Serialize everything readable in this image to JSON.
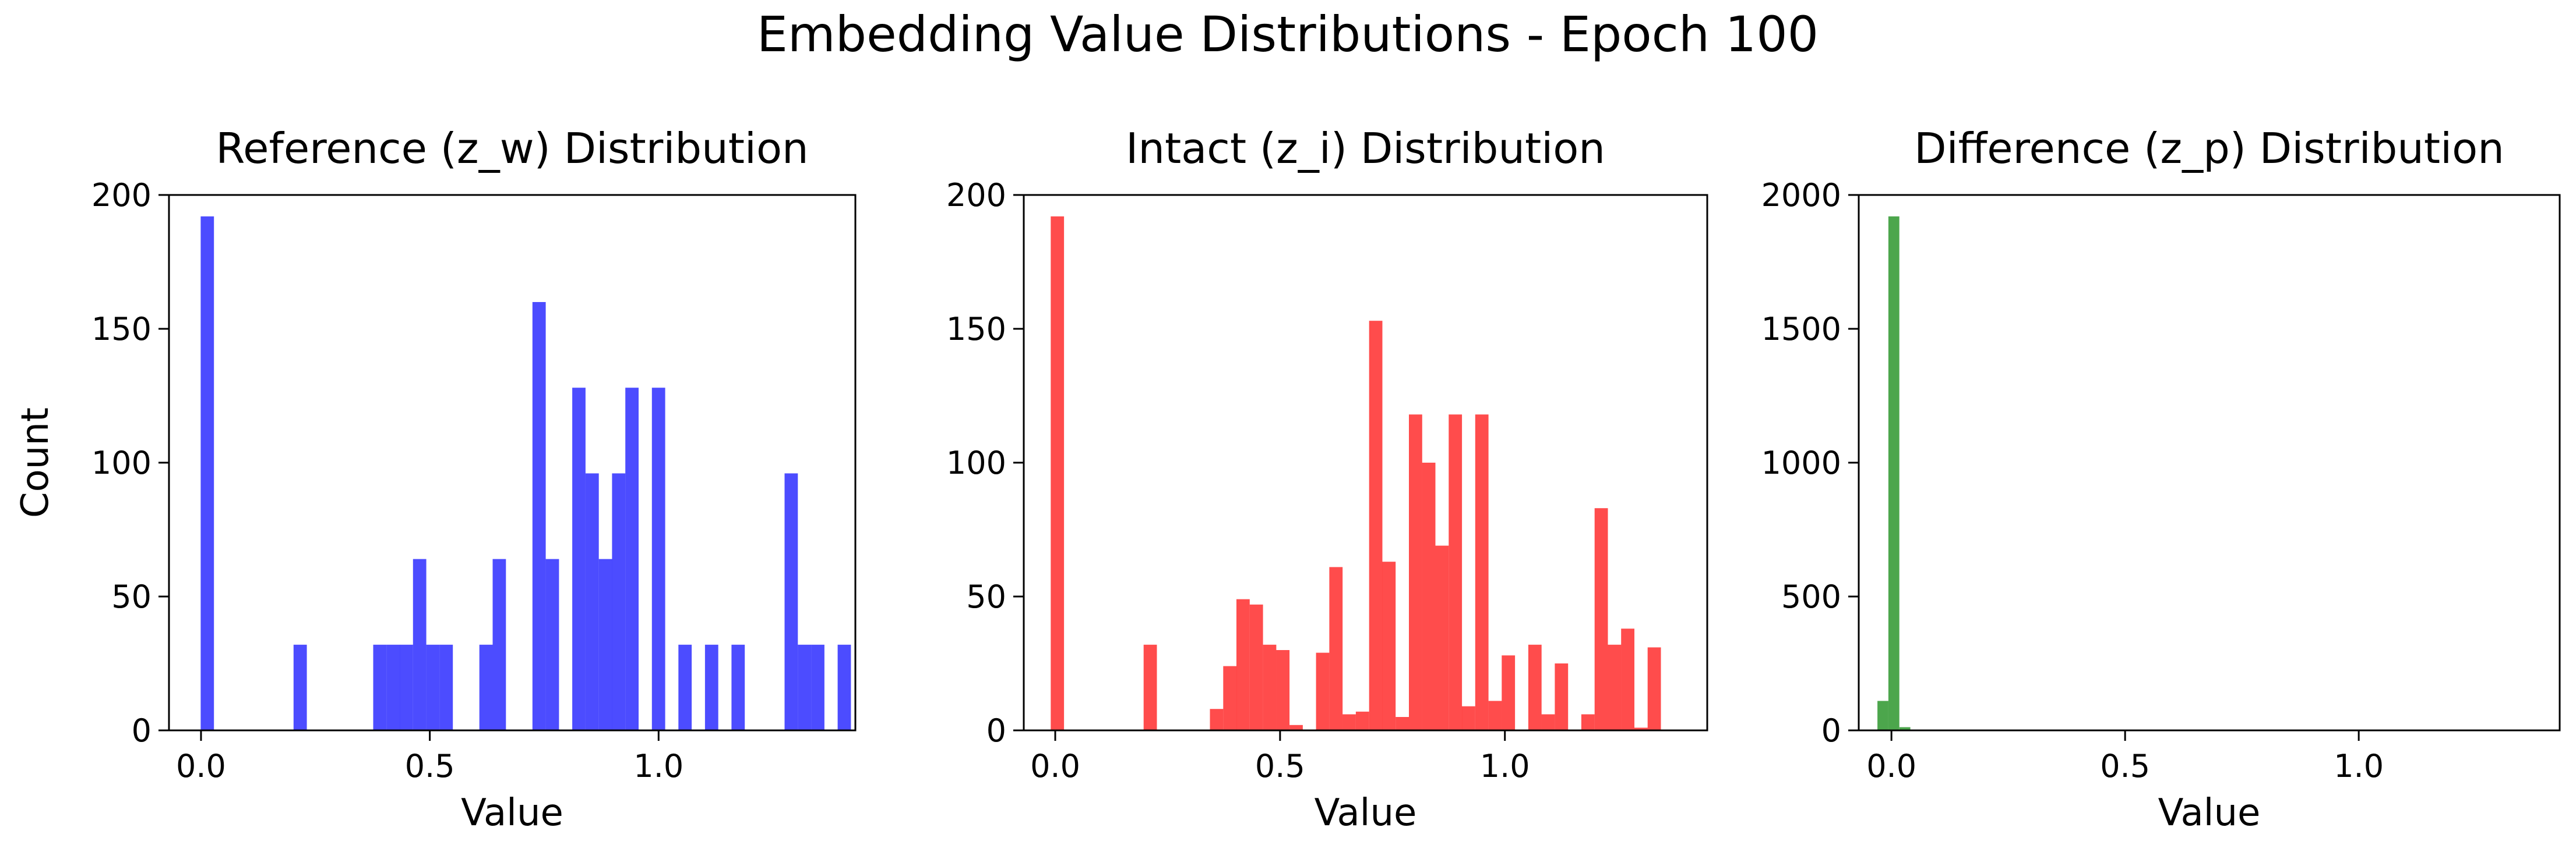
{
  "figure": {
    "suptitle": "Embedding Value Distributions - Epoch 100"
  },
  "chart_data": [
    {
      "type": "bar",
      "title": "Reference (z_w) Distribution",
      "xlabel": "Value",
      "ylabel": "Count",
      "color": "#0000ff",
      "opacity": 0.7,
      "xlim": [
        -0.07,
        1.43
      ],
      "ylim": [
        0,
        200
      ],
      "xticks": [
        0.0,
        0.5,
        1.0
      ],
      "xtick_labels": [
        "0.0",
        "0.5",
        "1.0"
      ],
      "yticks": [
        0,
        50,
        100,
        150,
        200
      ],
      "ytick_labels": [
        "0",
        "50",
        "100",
        "150",
        "200"
      ],
      "bin_start": -0.0007,
      "bin_width": 0.029,
      "values": [
        192,
        0,
        0,
        0,
        0,
        0,
        0,
        32,
        0,
        0,
        0,
        0,
        0,
        32,
        32,
        32,
        64,
        32,
        32,
        0,
        0,
        32,
        64,
        0,
        0,
        160,
        64,
        0,
        128,
        96,
        64,
        96,
        128,
        0,
        128,
        0,
        32,
        0,
        32,
        0,
        32,
        0,
        0,
        0,
        96,
        32,
        32,
        0,
        32
      ]
    },
    {
      "type": "bar",
      "title": "Intact (z_i) Distribution",
      "xlabel": "Value",
      "ylabel": "",
      "color": "#ff0000",
      "opacity": 0.7,
      "xlim": [
        -0.07,
        1.45
      ],
      "ylim": [
        0,
        200
      ],
      "xticks": [
        0.0,
        0.5,
        1.0
      ],
      "xtick_labels": [
        "0.0",
        "0.5",
        "1.0"
      ],
      "yticks": [
        0,
        50,
        100,
        150,
        200
      ],
      "ytick_labels": [
        "0",
        "50",
        "100",
        "150",
        "200"
      ],
      "bin_start": -0.01,
      "bin_width": 0.0295,
      "values": [
        192,
        0,
        0,
        0,
        0,
        0,
        0,
        32,
        0,
        0,
        0,
        0,
        8,
        24,
        49,
        47,
        32,
        30,
        2,
        0,
        29,
        61,
        6,
        7,
        153,
        63,
        5,
        118,
        100,
        69,
        118,
        9,
        118,
        11,
        28,
        0,
        32,
        6,
        25,
        0,
        6,
        83,
        32,
        38,
        1,
        31
      ]
    },
    {
      "type": "bar",
      "title": "Difference (z_p) Distribution",
      "xlabel": "Value",
      "ylabel": "",
      "color": "#008000",
      "opacity": 0.7,
      "xlim": [
        -0.07,
        1.43
      ],
      "ylim": [
        0,
        2000
      ],
      "xticks": [
        0.0,
        0.5,
        1.0
      ],
      "xtick_labels": [
        "0.0",
        "0.5",
        "1.0"
      ],
      "yticks": [
        0,
        500,
        1000,
        1500,
        2000
      ],
      "ytick_labels": [
        "0",
        "500",
        "1000",
        "1500",
        "2000"
      ],
      "bin_start": -0.03,
      "bin_width": 0.0235,
      "values": [
        110,
        1920,
        12
      ]
    }
  ]
}
